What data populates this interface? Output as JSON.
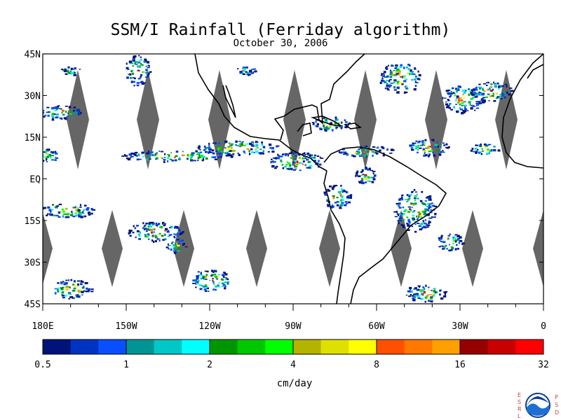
{
  "header": {
    "title": "SSM/I Rainfall (Ferriday algorithm)",
    "date": "October 30, 2006"
  },
  "map": {
    "lat_labels": [
      "45N",
      "30N",
      "15N",
      "EQ",
      "15S",
      "30S",
      "45S"
    ],
    "lat_values": [
      45,
      30,
      15,
      0,
      -15,
      -30,
      -45
    ],
    "lon_labels": [
      "180E",
      "150W",
      "120W",
      "90W",
      "60W",
      "30W",
      "0"
    ],
    "lon_values": [
      -180,
      -150,
      -120,
      -90,
      -60,
      -30,
      0
    ],
    "lon_range": [
      -180,
      0
    ],
    "lat_range": [
      -45,
      45
    ],
    "no_data_color": "#666666"
  },
  "colorbar": {
    "tick_labels": [
      "0.5",
      "1",
      "2",
      "4",
      "8",
      "16",
      "32"
    ],
    "unit": "cm/day",
    "colors": [
      "#00137a",
      "#0033c0",
      "#0a4fff",
      "#009494",
      "#00c8c8",
      "#00ffff",
      "#009600",
      "#00c800",
      "#00ff00",
      "#b4b400",
      "#e0e000",
      "#ffff00",
      "#ff5000",
      "#ff7800",
      "#ffa000",
      "#960000",
      "#c80000",
      "#ff0000"
    ]
  },
  "logo": {
    "left_letters": [
      "E",
      "S",
      "R",
      "L"
    ],
    "right_letters": [
      "P",
      "S",
      "D"
    ],
    "emblem_text": "NOAA"
  }
}
